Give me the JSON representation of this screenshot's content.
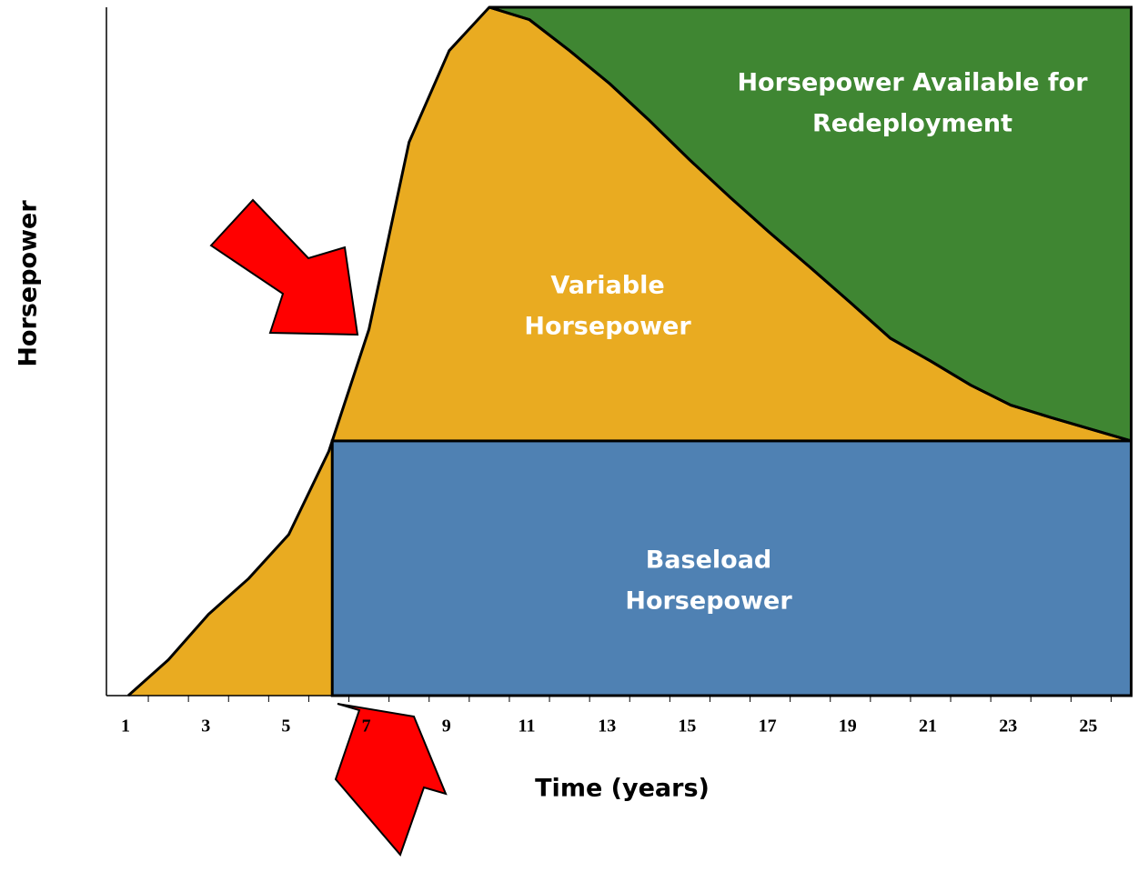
{
  "chart_data": {
    "type": "area",
    "x_label": "Time (years)",
    "y_label": "Horsepower",
    "categories": [
      "1",
      null,
      "3",
      null,
      "5",
      null,
      "7",
      null,
      "9",
      null,
      "11",
      null,
      "13",
      null,
      "15",
      null,
      "17",
      null,
      "19",
      null,
      "21",
      null,
      "23",
      null,
      "25",
      null
    ],
    "values": [
      0,
      5.2,
      11.8,
      17.0,
      23.4,
      35.5,
      53.2,
      80.4,
      93.7,
      100,
      98.2,
      93.7,
      88.9,
      83.5,
      77.8,
      72.4,
      67.2,
      62.2,
      57.1,
      51.9,
      48.6,
      45.1,
      42.2,
      40.4,
      38.7,
      37
    ],
    "baseload": 37,
    "ylim": [
      0,
      100
    ],
    "colors": {
      "variable": "#e9ab21",
      "baseload": "#4f81b3",
      "available": "#3f8632"
    },
    "region_labels": {
      "available": [
        "Horsepower Available for",
        "Redeployment"
      ],
      "variable": [
        "Variable",
        "Horsepower"
      ],
      "baseload": [
        "Baseload",
        "Horsepower"
      ]
    }
  }
}
